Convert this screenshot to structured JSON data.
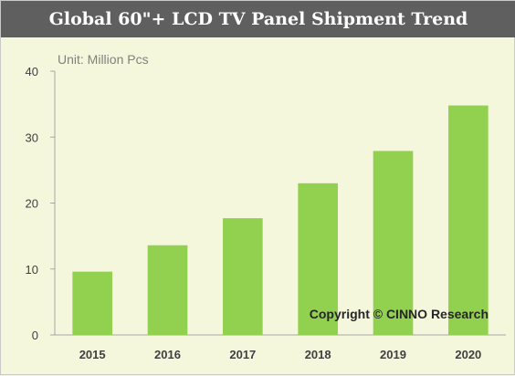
{
  "chart_data": {
    "type": "bar",
    "title": "Global 60\"+ LCD TV Panel Shipment Trend",
    "unit_label": "Unit: Million Pcs",
    "categories": [
      "2015",
      "2016",
      "2017",
      "2018",
      "2019",
      "2020"
    ],
    "values": [
      9.6,
      13.6,
      17.7,
      23.0,
      27.9,
      34.8
    ],
    "yticks": [
      "0",
      "10",
      "20",
      "30",
      "40"
    ],
    "ylim": [
      0,
      40
    ],
    "grid": false,
    "bar_color": "#92d050",
    "copyright": "Copyright © CINNO Research",
    "title_bar_color": "#5f5f5f",
    "background": "#f5f7dd"
  }
}
